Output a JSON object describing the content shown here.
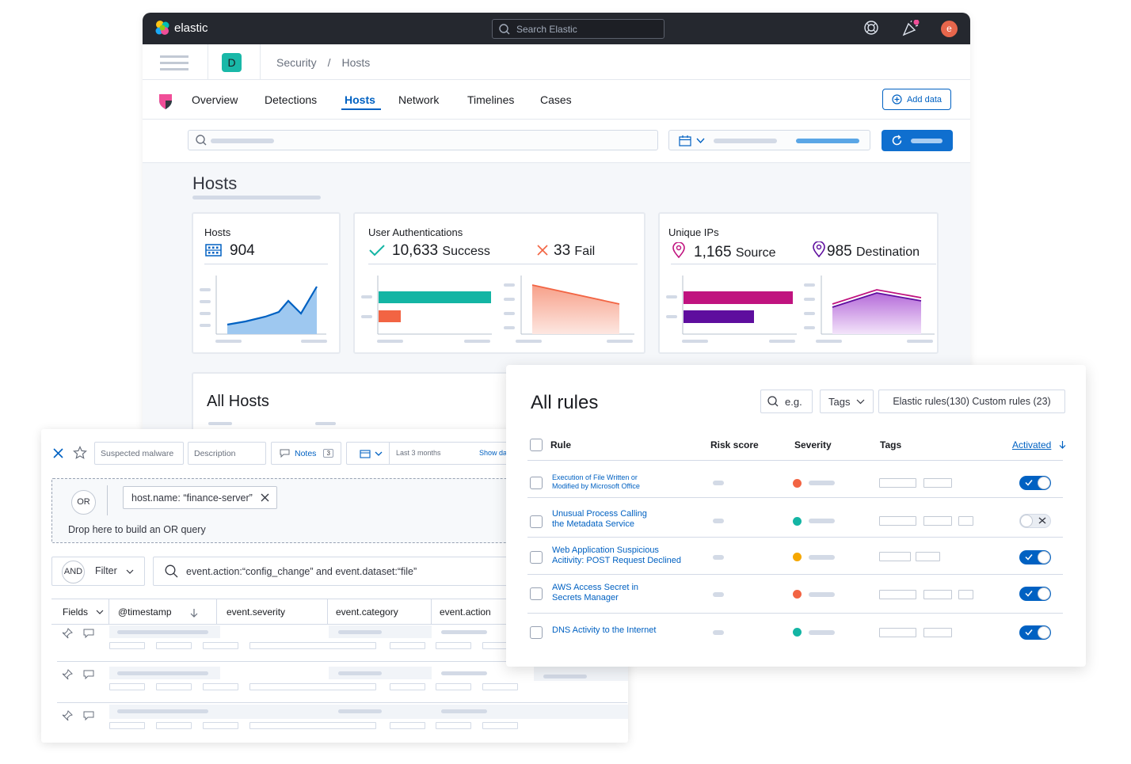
{
  "topbar": {
    "brand": "elastic",
    "search_placeholder": "Search Elastic",
    "avatar_initial": "e"
  },
  "header": {
    "space_initial": "D",
    "breadcrumbs": [
      "Security",
      "/",
      "Hosts"
    ]
  },
  "nav": {
    "tabs": [
      {
        "label": "Overview"
      },
      {
        "label": "Detections"
      },
      {
        "label": "Hosts",
        "active": true
      },
      {
        "label": "Network"
      },
      {
        "label": "Timelines"
      },
      {
        "label": "Cases"
      }
    ],
    "add_data_label": "Add data"
  },
  "page": {
    "title": "Hosts"
  },
  "stats": {
    "hosts": {
      "title": "Hosts",
      "value": "904"
    },
    "auth": {
      "title": "User Authentications",
      "success_value": "10,633",
      "success_label": "Success",
      "fail_value": "33",
      "fail_label": "Fail"
    },
    "ips": {
      "title": "Unique IPs",
      "source_value": "1,165",
      "source_label": "Source",
      "dest_value": "985",
      "dest_label": "Destination"
    }
  },
  "all_hosts": {
    "title": "All Hosts"
  },
  "timeline": {
    "title_placeholder": "Suspected malware",
    "description_placeholder": "Description",
    "notes_label": "Notes",
    "notes_count": "3",
    "date_range": "Last 3 months",
    "show_dates": "Show da",
    "or_badge": "OR",
    "host_pill": "host.name: “finance-server”",
    "drop_text": "Drop here to build an OR query",
    "and_badge": "AND",
    "filter_label": "Filter",
    "kql_query": "event.action:“config_change” and event.dataset:“file”",
    "columns": [
      "Fields",
      "@timestamp",
      "event.severity",
      "event.category",
      "event.action"
    ]
  },
  "rules": {
    "title": "All rules",
    "search_placeholder": "e.g.",
    "tags_label": "Tags",
    "filter_text": "Elastic rules(130) Custom rules (23)",
    "columns": {
      "rule": "Rule",
      "risk": "Risk score",
      "severity": "Severity",
      "tags": "Tags",
      "activated": "Activated"
    },
    "items": [
      {
        "name_line1": "Execution of File Written or",
        "name_line2": "Modified by Microsoft Office",
        "severity_color": "#f26443",
        "activated": true
      },
      {
        "name_line1": "Unusual Process Calling",
        "name_line2": "the Metadata Service",
        "severity_color": "#14b5a4",
        "activated": false
      },
      {
        "name_line1": "Web Application Suspicious",
        "name_line2": "Acitivity: POST Request Declined",
        "severity_color": "#f5a700",
        "activated": true
      },
      {
        "name_line1": "AWS Access Secret in",
        "name_line2": "Secrets Manager",
        "severity_color": "#f26443",
        "activated": true
      },
      {
        "name_line1": "DNS Activity to the Internet",
        "name_line2": "",
        "severity_color": "#14b5a4",
        "activated": true
      }
    ]
  },
  "colors": {
    "accent": "#0061c2",
    "teal": "#14b5a4",
    "orange": "#f26443",
    "magenta": "#c0137f",
    "purple": "#5e0e9e"
  }
}
